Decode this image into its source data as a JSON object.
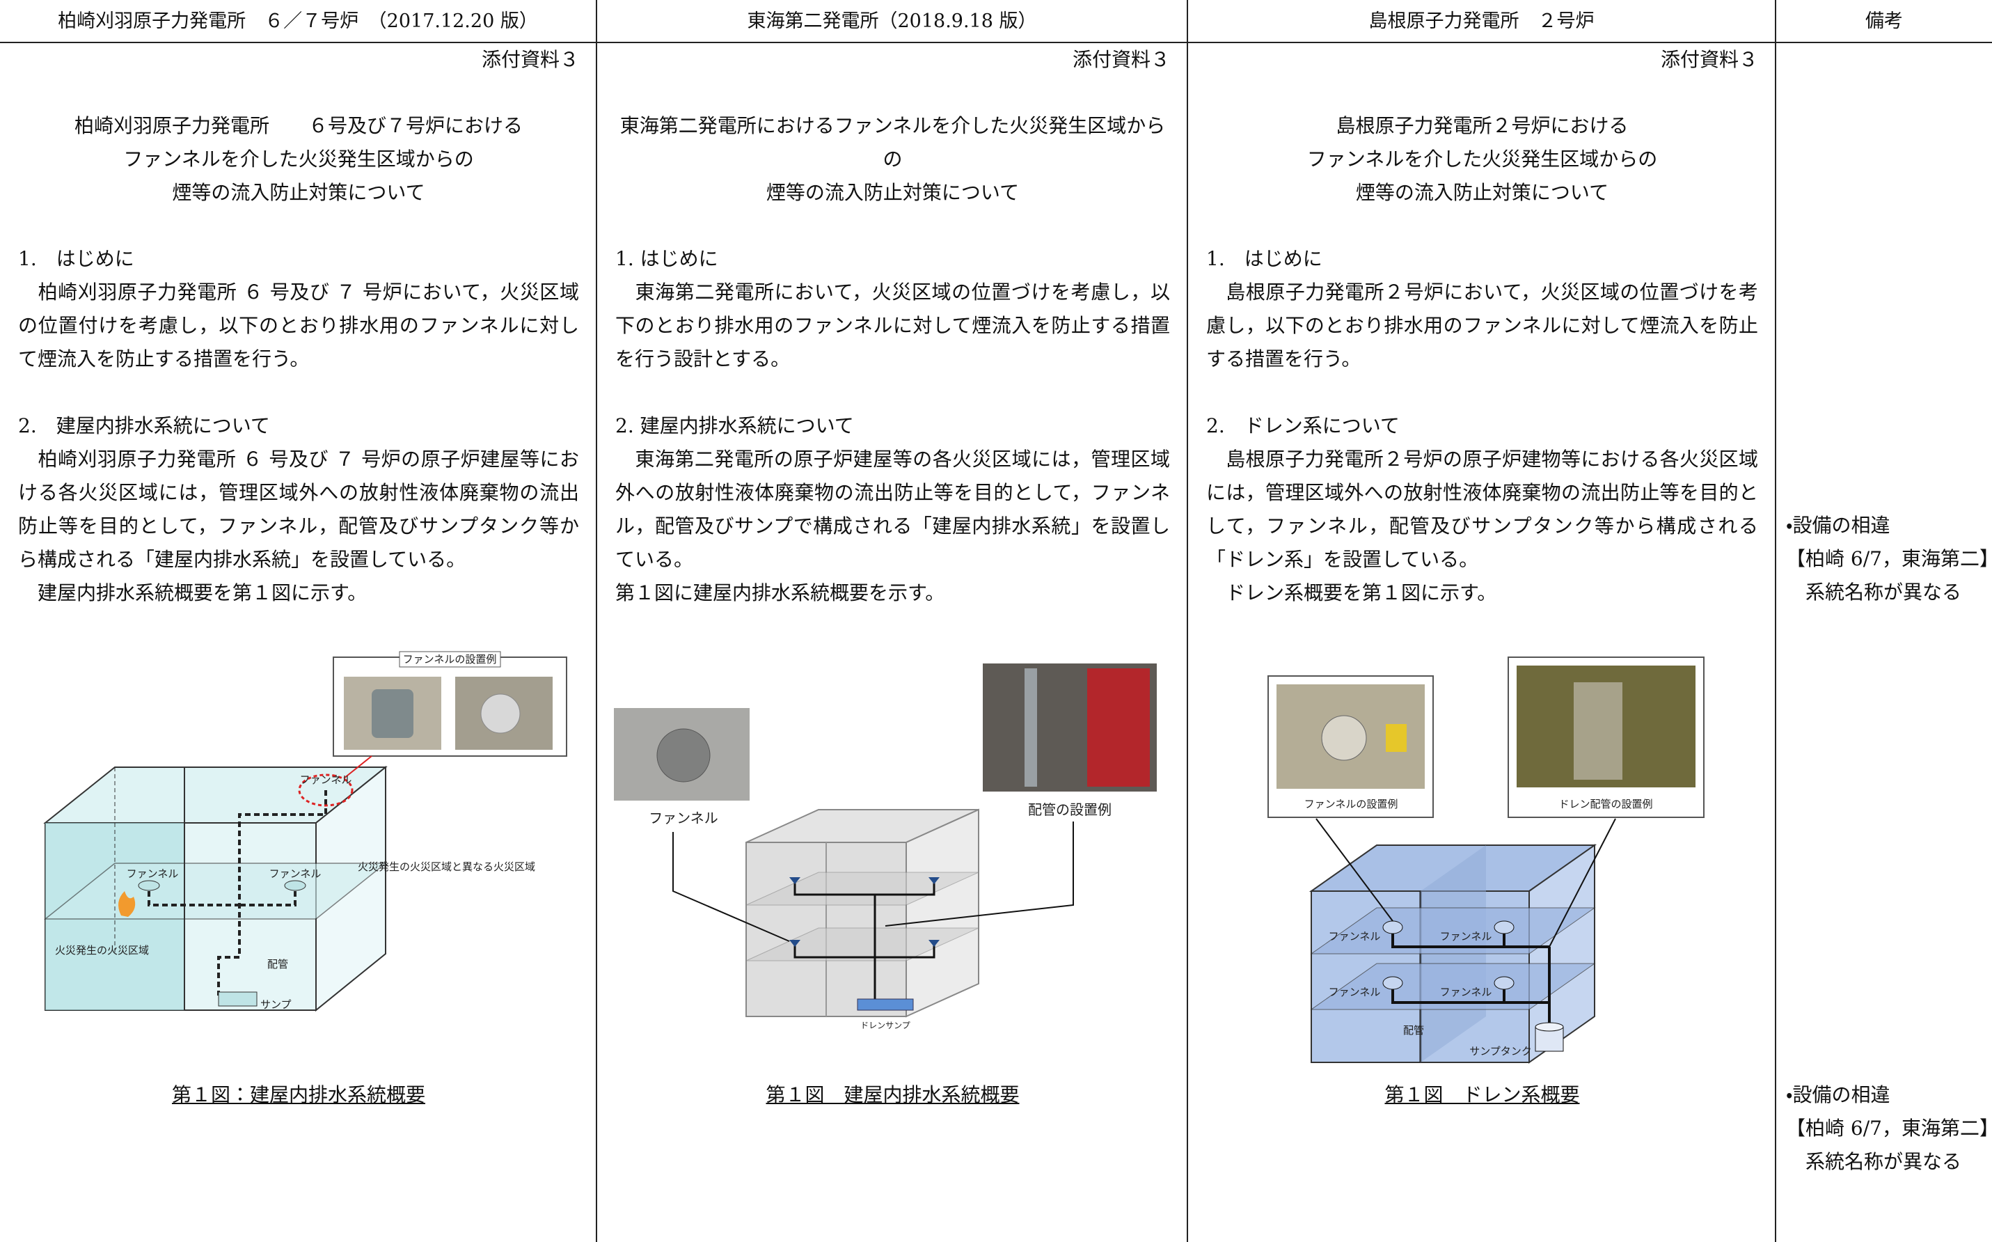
{
  "header": {
    "columns": [
      "柏崎刈羽原子力発電所　６／７号炉　（2017.12.20 版）",
      "東海第二発電所（2018.9.18 版）",
      "島根原子力発電所　２号炉",
      "備考"
    ]
  },
  "columns": [
    {
      "attachment": "添付資料３",
      "title": [
        "柏崎刈羽原子力発電所　　６号及び７号炉における",
        "ファンネルを介した火災発生区域からの",
        "煙等の流入防止対策について"
      ],
      "sections": [
        {
          "heading": "1.　はじめに",
          "body": [
            "　柏崎刈羽原子力発電所 ６ 号及び ７ 号炉において，火災区域の位置付けを考慮し，以下のとおり排水用のファンネルに対して煙流入を防止する措置を行う。"
          ]
        },
        {
          "heading": "2.　建屋内排水系統について",
          "body": [
            "　柏崎刈羽原子力発電所 ６ 号及び ７ 号炉の原子炉建屋等における各火災区域には，管理区域外への放射性液体廃棄物の流出防止等を目的として，ファンネル，配管及びサンプタンク等から構成される「建屋内排水系統」を設置している。",
            "　建屋内排水系統概要を第１図に示す。"
          ]
        }
      ],
      "figure_labels": [
        "ファンネルの設置例",
        "ファンネル",
        "ファンネル",
        "ファンネル",
        "火災発生の火災区域と異なる火災区域",
        "火災発生の火災区域",
        "配管",
        "サンプ"
      ],
      "caption": "第１図：建屋内排水系統概要"
    },
    {
      "attachment": "添付資料３",
      "title": [
        "東海第二発電所におけるファンネルを介した火災発生区域からの",
        "煙等の流入防止対策について"
      ],
      "sections": [
        {
          "heading": "1. はじめに",
          "body": [
            "　東海第二発電所において，火災区域の位置づけを考慮し，以下のとおり排水用のファンネルに対して煙流入を防止する措置を行う設計とする。"
          ]
        },
        {
          "heading": "2. 建屋内排水系統について",
          "body": [
            "　東海第二発電所の原子炉建屋等の各火災区域には，管理区域外への放射性液体廃棄物の流出防止等を目的として，ファンネル，配管及びサンプで構成される「建屋内排水系統」を設置している。",
            "第１図に建屋内排水系統概要を示す。"
          ]
        }
      ],
      "figure_labels": [
        "ファンネル",
        "配管の設置例",
        "ドレンサンプ"
      ],
      "caption": "第１図　建屋内排水系統概要"
    },
    {
      "attachment": "添付資料３",
      "title": [
        "島根原子力発電所２号炉における",
        "ファンネルを介した火災発生区域からの",
        "煙等の流入防止対策について"
      ],
      "sections": [
        {
          "heading": "1.　はじめに",
          "body": [
            "　島根原子力発電所２号炉において，火災区域の位置づけを考慮し，以下のとおり排水用のファンネルに対して煙流入を防止する措置を行う。"
          ]
        },
        {
          "heading": "2.　ドレン系について",
          "body": [
            "　島根原子力発電所２号炉の原子炉建物等における各火災区域には，管理区域外への放射性液体廃棄物の流出防止等を目的として，ファンネル，配管及びサンプタンク等から構成される「ドレン系」を設置している。",
            "　ドレン系概要を第１図に示す。"
          ]
        }
      ],
      "figure_labels": [
        "ファンネルの設置例",
        "ドレン配管の設置例",
        "ファンネル",
        "ファンネル",
        "ファンネル",
        "ファンネル",
        "配管",
        "サンプタンク"
      ],
      "caption": "第１図　ドレン系概要"
    }
  ],
  "remarks": [
    {
      "lines": [
        "・設備の相違",
        "【柏崎 6/7，東海第二】",
        "　系統名称が異なる"
      ]
    },
    {
      "lines": [
        "・設備の相違",
        "【柏崎 6/7，東海第二】",
        "　系統名称が異なる"
      ]
    }
  ]
}
